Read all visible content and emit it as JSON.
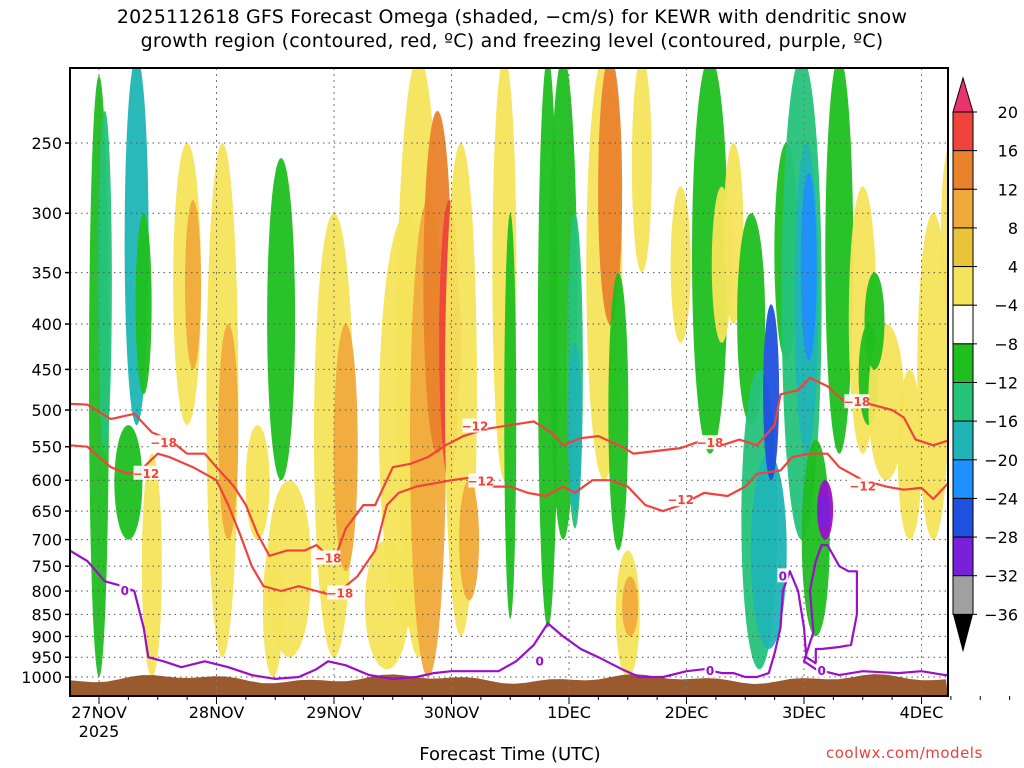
{
  "title": {
    "line1": "2025112618 GFS Forecast Omega (shaded, −cm/s) for KEWR with dendritic snow",
    "line2": "growth region (contoured, red, ºC) and freezing level (contoured, purple, ºC)"
  },
  "credit": "coolwx.com/models",
  "chart_data": {
    "type": "heatmap",
    "xlabel": "Forecast Time (UTC)",
    "ylabel": "",
    "x_ticks": [
      "27NOV\n2025",
      "28NOV",
      "29NOV",
      "30NOV",
      "1DEC",
      "2DEC",
      "3DEC",
      "4DEC"
    ],
    "x_tick_labels": [
      "27NOV",
      "28NOV",
      "29NOV",
      "30NOV",
      "1DEC",
      "2DEC",
      "3DEC",
      "4DEC"
    ],
    "x_year_label": "2025",
    "y_ticks": [
      250,
      300,
      350,
      400,
      450,
      500,
      550,
      600,
      650,
      700,
      750,
      800,
      850,
      900,
      950,
      1000
    ],
    "y_axis": "pressure (hPa), log scale, inverted",
    "ylim": [
      1015,
      200
    ],
    "colorbar": {
      "labels": [
        "20",
        "16",
        "12",
        "8",
        "4",
        "−4",
        "−8",
        "−12",
        "−16",
        "−20",
        "−24",
        "−28",
        "−32",
        "−36"
      ],
      "colors": [
        "#e8336d",
        "#f0433c",
        "#e9822c",
        "#f0aa3c",
        "#e8c43a",
        "#f4e45a",
        "#ffffff",
        "#1fbf1f",
        "#25c37a",
        "#1fb5b5",
        "#1e90ff",
        "#2050e0",
        "#7a20d8",
        "#9a10c8",
        "#a0a0a0"
      ]
    },
    "contours": {
      "dendritic": {
        "color": "#f0433c",
        "levels": [
          "−18",
          "−12"
        ],
        "labels": [
          "−18",
          "−12",
          "−18",
          "−12",
          "−18",
          "−12",
          "−18",
          "−12",
          "−18",
          "−12"
        ]
      },
      "freezing": {
        "color": "#9a10c8",
        "levels": [
          "0"
        ],
        "labels": [
          "0",
          "0",
          "0",
          "0",
          "0"
        ]
      }
    },
    "grid": true
  }
}
